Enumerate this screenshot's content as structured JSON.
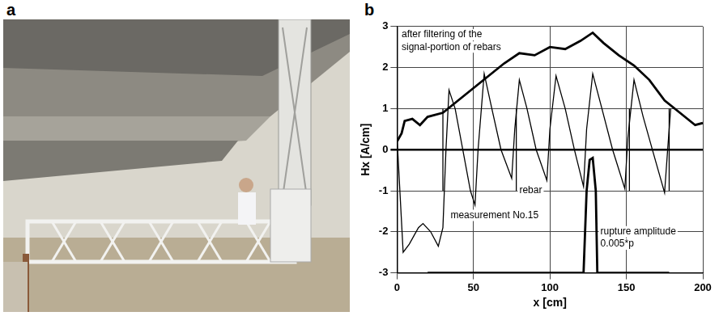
{
  "panels": [
    {
      "letter": "a"
    },
    {
      "letter": "b"
    }
  ],
  "chart_data": {
    "type": "line",
    "x_label": "x [cm]",
    "y_label": "Hx [A/cm]",
    "xlim": [
      0,
      200
    ],
    "xticks": [
      0,
      50,
      100,
      150,
      200
    ],
    "ylim": [
      -3,
      3
    ],
    "yticks": [
      -3,
      -2,
      -1,
      0,
      1,
      2,
      3
    ],
    "grid": true,
    "series": [
      {
        "color": "#000000",
        "line_style": "thin",
        "x": [
          0,
          4,
          8,
          14,
          17,
          22,
          27,
          30,
          32,
          34,
          38,
          43,
          48,
          51,
          53,
          57,
          62,
          68,
          75,
          77,
          80,
          85,
          91,
          98,
          100,
          104,
          110,
          116,
          122,
          124,
          128,
          134,
          141,
          149,
          151,
          155,
          161,
          167,
          175,
          177,
          179
        ],
        "values": [
          0.3,
          -2.5,
          -2.3,
          -1.9,
          -1.8,
          -2.0,
          -2.35,
          -1.9,
          0.0,
          1.45,
          1.0,
          0.0,
          -1.0,
          -1.35,
          0.0,
          1.85,
          1.0,
          0.0,
          -0.7,
          0.5,
          1.7,
          1.0,
          0.0,
          -0.75,
          0.5,
          1.8,
          1.0,
          0.0,
          -0.9,
          0.5,
          1.85,
          1.0,
          0.0,
          -0.95,
          0.3,
          1.7,
          0.8,
          0.0,
          -1.05,
          0.0,
          1.0
        ]
      },
      {
        "color": "#000000",
        "line_style": "thick",
        "x": [
          0,
          3,
          5,
          10,
          15,
          20,
          30,
          40,
          50,
          60,
          70,
          80,
          90,
          100,
          110,
          120,
          128,
          135,
          145,
          155,
          165,
          175,
          185,
          195,
          200
        ],
        "values": [
          0.2,
          0.4,
          0.7,
          0.75,
          0.6,
          0.8,
          0.9,
          1.2,
          1.5,
          1.8,
          2.1,
          2.35,
          2.3,
          2.5,
          2.45,
          2.65,
          2.85,
          2.6,
          2.3,
          2.05,
          1.7,
          1.2,
          0.9,
          0.6,
          0.65
        ]
      },
      {
        "color": "#000000",
        "line_style": "thin",
        "x": [
          30,
          30,
          30,
          78,
          78,
          78,
          152,
          152,
          152,
          178,
          178
        ],
        "values": [
          1,
          -1,
          null,
          1,
          -1,
          null,
          1,
          -1,
          null,
          1,
          -1
        ]
      },
      {
        "color": "#000000",
        "line_style": "thick",
        "x": [
          20,
          122,
          124,
          126,
          128,
          130,
          131,
          178
        ],
        "values": [
          -3,
          -3,
          -1,
          -0.25,
          -0.2,
          -1,
          -3,
          -3
        ]
      }
    ],
    "annotations": [
      {
        "text": "after filtering of the",
        "x": 3,
        "y": 2.8
      },
      {
        "text": "signal-portion of rebars",
        "x": 3,
        "y": 2.5
      },
      {
        "text": "rebar",
        "x": 80,
        "y": -1.0
      },
      {
        "text": "measurement No.15",
        "x": 35,
        "y": -1.6
      },
      {
        "text": "rupture amplitude",
        "x": 133,
        "y": -2.0
      },
      {
        "text": "0.005*p",
        "x": 133,
        "y": -2.3
      }
    ]
  }
}
